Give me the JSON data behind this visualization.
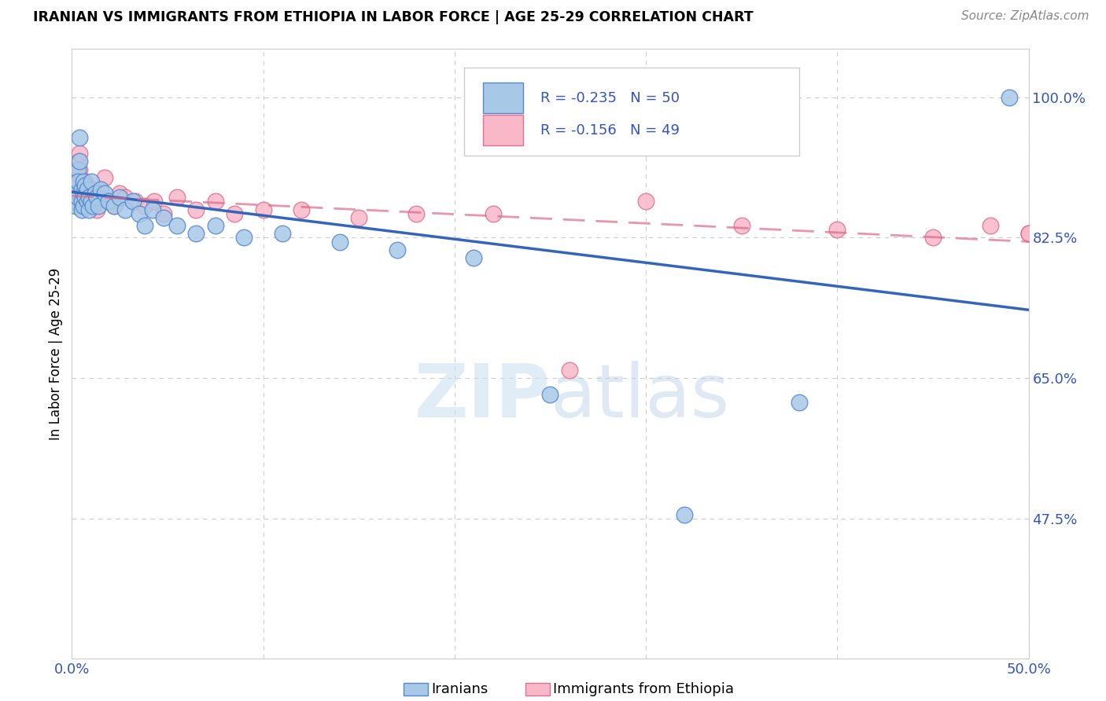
{
  "title": "IRANIAN VS IMMIGRANTS FROM ETHIOPIA IN LABOR FORCE | AGE 25-29 CORRELATION CHART",
  "source": "Source: ZipAtlas.com",
  "ylabel": "In Labor Force | Age 25-29",
  "x_min": 0.0,
  "x_max": 0.5,
  "y_min": 0.3,
  "y_max": 1.06,
  "x_ticks": [
    0.0,
    0.1,
    0.2,
    0.3,
    0.4,
    0.5
  ],
  "x_tick_labels": [
    "0.0%",
    "",
    "",
    "",
    "",
    "50.0%"
  ],
  "y_tick_labels_right": [
    "100.0%",
    "82.5%",
    "65.0%",
    "47.5%"
  ],
  "y_tick_values_right": [
    1.0,
    0.825,
    0.65,
    0.475
  ],
  "legend_blue_R": "R = -0.235",
  "legend_blue_N": "N = 50",
  "legend_pink_R": "R = -0.156",
  "legend_pink_N": "N = 49",
  "watermark_zip": "ZIP",
  "watermark_atlas": "atlas",
  "blue_color": "#a8c8e8",
  "blue_edge_color": "#5588cc",
  "blue_line_color": "#3366bb",
  "pink_color": "#f8b8c8",
  "pink_edge_color": "#e07090",
  "pink_line_color": "#e06888",
  "iranians_x": [
    0.001,
    0.001,
    0.002,
    0.002,
    0.003,
    0.003,
    0.003,
    0.004,
    0.004,
    0.005,
    0.005,
    0.005,
    0.006,
    0.006,
    0.006,
    0.007,
    0.007,
    0.008,
    0.008,
    0.009,
    0.009,
    0.01,
    0.01,
    0.011,
    0.012,
    0.013,
    0.014,
    0.015,
    0.017,
    0.019,
    0.022,
    0.025,
    0.028,
    0.032,
    0.035,
    0.038,
    0.042,
    0.048,
    0.055,
    0.065,
    0.075,
    0.09,
    0.11,
    0.14,
    0.17,
    0.21,
    0.25,
    0.32,
    0.38,
    0.49
  ],
  "iranians_y": [
    0.875,
    0.87,
    0.88,
    0.865,
    0.91,
    0.895,
    0.875,
    0.95,
    0.92,
    0.885,
    0.87,
    0.86,
    0.895,
    0.88,
    0.865,
    0.89,
    0.875,
    0.885,
    0.87,
    0.875,
    0.86,
    0.895,
    0.87,
    0.865,
    0.88,
    0.875,
    0.865,
    0.885,
    0.88,
    0.87,
    0.865,
    0.875,
    0.86,
    0.87,
    0.855,
    0.84,
    0.86,
    0.85,
    0.84,
    0.83,
    0.84,
    0.825,
    0.83,
    0.82,
    0.81,
    0.8,
    0.63,
    0.48,
    0.62,
    1.0
  ],
  "ethiopia_x": [
    0.001,
    0.001,
    0.002,
    0.002,
    0.003,
    0.003,
    0.003,
    0.004,
    0.004,
    0.005,
    0.005,
    0.006,
    0.006,
    0.007,
    0.007,
    0.008,
    0.009,
    0.01,
    0.011,
    0.012,
    0.013,
    0.015,
    0.017,
    0.019,
    0.022,
    0.025,
    0.028,
    0.033,
    0.038,
    0.043,
    0.048,
    0.055,
    0.065,
    0.075,
    0.085,
    0.1,
    0.12,
    0.15,
    0.18,
    0.22,
    0.26,
    0.3,
    0.35,
    0.4,
    0.45,
    0.48,
    0.5,
    0.5,
    0.5
  ],
  "ethiopia_y": [
    0.88,
    0.87,
    0.89,
    0.875,
    0.92,
    0.905,
    0.88,
    0.93,
    0.91,
    0.88,
    0.865,
    0.89,
    0.875,
    0.895,
    0.87,
    0.88,
    0.875,
    0.87,
    0.885,
    0.88,
    0.86,
    0.875,
    0.9,
    0.87,
    0.865,
    0.88,
    0.875,
    0.87,
    0.865,
    0.87,
    0.855,
    0.875,
    0.86,
    0.87,
    0.855,
    0.86,
    0.86,
    0.85,
    0.855,
    0.855,
    0.66,
    0.87,
    0.84,
    0.835,
    0.825,
    0.84,
    0.83,
    0.83,
    0.83
  ],
  "blue_regline_x0": 0.0,
  "blue_regline_y0": 0.882,
  "blue_regline_x1": 0.5,
  "blue_regline_y1": 0.735,
  "pink_regline_x0": 0.0,
  "pink_regline_y0": 0.877,
  "pink_regline_x1": 0.5,
  "pink_regline_y1": 0.82
}
